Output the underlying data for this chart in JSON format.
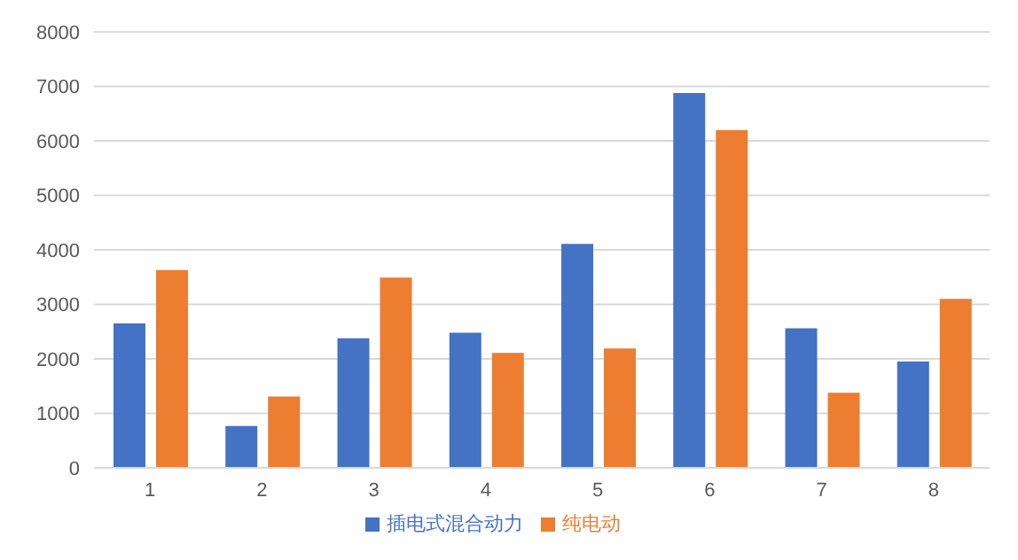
{
  "chart_data": {
    "type": "bar",
    "categories": [
      "1",
      "2",
      "3",
      "4",
      "5",
      "6",
      "7",
      "8"
    ],
    "series": [
      {
        "name": "插电式混合动力",
        "color": "#4472c4",
        "values": [
          2650,
          770,
          2380,
          2480,
          4110,
          6880,
          2560,
          1950
        ]
      },
      {
        "name": "纯电动",
        "color": "#ed7d31",
        "values": [
          3630,
          1310,
          3490,
          2110,
          2190,
          6200,
          1380,
          3100
        ]
      }
    ],
    "ylim": [
      0,
      8000
    ],
    "yticks": [
      0,
      1000,
      2000,
      3000,
      4000,
      5000,
      6000,
      7000,
      8000
    ],
    "grid": "y",
    "legend": "bottom"
  }
}
